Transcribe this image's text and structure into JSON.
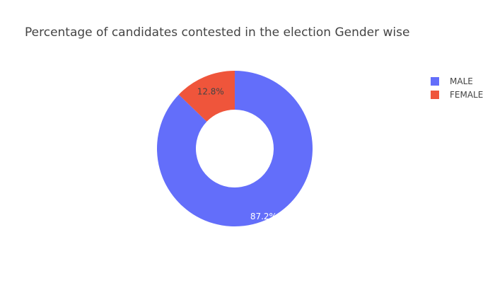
{
  "chart_data": {
    "type": "pie",
    "donut": true,
    "title": "Percentage of candidates contested in the election Gender wise",
    "labels": [
      "MALE",
      "FEMALE"
    ],
    "values": [
      87.2,
      12.8
    ],
    "display_labels": [
      "87.2%",
      "12.8%"
    ],
    "colors": [
      "#636efa",
      "#ef553b"
    ],
    "label_colors": [
      "#ffffff",
      "#444444"
    ],
    "legend_position": "top-right"
  }
}
